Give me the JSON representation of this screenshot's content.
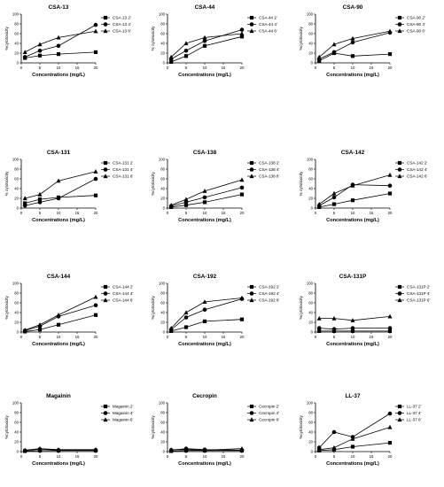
{
  "figure": {
    "panels_count": 12
  },
  "chart_data": [
    {
      "type": "line",
      "title": "CSA-13",
      "xlabel": "Concentrations (mg/L)",
      "ylabel": "%cytotoxicity",
      "x": [
        1,
        5,
        10,
        20
      ],
      "xticks": [
        0,
        5,
        10,
        15,
        20
      ],
      "ylim": [
        0,
        100
      ],
      "yticks": [
        0,
        20,
        40,
        60,
        80,
        100
      ],
      "series": [
        {
          "name": "CSA-13 2'",
          "marker": "square",
          "values": [
            10,
            15,
            18,
            22
          ]
        },
        {
          "name": "CSA-13 4'",
          "marker": "circle",
          "values": [
            12,
            25,
            35,
            78
          ]
        },
        {
          "name": "CSA-13 6'",
          "marker": "triangle",
          "values": [
            22,
            38,
            52,
            65
          ]
        }
      ]
    },
    {
      "type": "line",
      "title": "CSA-44",
      "xlabel": "Concentrations (mg/L)",
      "ylabel": "% cytotoxicity",
      "x": [
        1,
        5,
        10,
        20
      ],
      "xticks": [
        0,
        5,
        10,
        15,
        20
      ],
      "ylim": [
        0,
        100
      ],
      "yticks": [
        0,
        20,
        40,
        60,
        80,
        100
      ],
      "series": [
        {
          "name": "CSA-44 2'",
          "marker": "square",
          "values": [
            2,
            14,
            35,
            54
          ]
        },
        {
          "name": "CSA-44 4'",
          "marker": "circle",
          "values": [
            8,
            25,
            45,
            68
          ]
        },
        {
          "name": "CSA-44 6'",
          "marker": "triangle",
          "values": [
            12,
            40,
            52,
            60
          ]
        }
      ]
    },
    {
      "type": "line",
      "title": "CSA-90",
      "xlabel": "Concentrations (mg/L)",
      "ylabel": "%cytotoxicity",
      "x": [
        1,
        5,
        10,
        20
      ],
      "xticks": [
        0,
        5,
        10,
        15,
        20
      ],
      "ylim": [
        0,
        100
      ],
      "yticks": [
        0,
        20,
        40,
        60,
        80,
        100
      ],
      "series": [
        {
          "name": "CSA-90 2'",
          "marker": "square",
          "values": [
            4,
            20,
            14,
            18
          ]
        },
        {
          "name": "CSA-90 4'",
          "marker": "circle",
          "values": [
            8,
            22,
            42,
            62
          ]
        },
        {
          "name": "CSA-90 6'",
          "marker": "triangle",
          "values": [
            12,
            38,
            50,
            65
          ]
        }
      ]
    },
    {
      "type": "line",
      "title": "CSA-131",
      "xlabel": "Concentrations (mg/L)",
      "ylabel": "% cytotoxicity",
      "x": [
        1,
        5,
        10,
        20
      ],
      "xticks": [
        0,
        5,
        10,
        15,
        20
      ],
      "ylim": [
        0,
        100
      ],
      "yticks": [
        0,
        20,
        40,
        60,
        80,
        100
      ],
      "series": [
        {
          "name": "CSA-131 2'",
          "marker": "square",
          "values": [
            10,
            18,
            22,
            26
          ]
        },
        {
          "name": "CSA-131 4'",
          "marker": "circle",
          "values": [
            5,
            12,
            20,
            60
          ]
        },
        {
          "name": "CSA-131 6'",
          "marker": "triangle",
          "values": [
            20,
            28,
            56,
            75
          ]
        }
      ]
    },
    {
      "type": "line",
      "title": "CSA-138",
      "xlabel": "Concentrations (mg/L)",
      "ylabel": "%cytotoxicity",
      "x": [
        1,
        5,
        10,
        20
      ],
      "xticks": [
        0,
        5,
        10,
        15,
        20
      ],
      "ylim": [
        0,
        100
      ],
      "yticks": [
        0,
        20,
        40,
        60,
        80,
        100
      ],
      "series": [
        {
          "name": "CSA-138 2'",
          "marker": "square",
          "values": [
            2,
            6,
            12,
            28
          ]
        },
        {
          "name": "CSA-138 4'",
          "marker": "circle",
          "values": [
            4,
            12,
            22,
            42
          ]
        },
        {
          "name": "CSA-138 6'",
          "marker": "triangle",
          "values": [
            6,
            18,
            35,
            58
          ]
        }
      ]
    },
    {
      "type": "line",
      "title": "CSA-142",
      "xlabel": "Concentrations (mg/L)",
      "ylabel": "% cytotoxicity",
      "x": [
        1,
        5,
        10,
        20
      ],
      "xticks": [
        0,
        5,
        10,
        15,
        20
      ],
      "ylim": [
        0,
        100
      ],
      "yticks": [
        0,
        20,
        40,
        60,
        80,
        100
      ],
      "series": [
        {
          "name": "CSA-142 2'",
          "marker": "square",
          "values": [
            2,
            8,
            16,
            30
          ]
        },
        {
          "name": "CSA-142 4'",
          "marker": "circle",
          "values": [
            5,
            22,
            48,
            46
          ]
        },
        {
          "name": "CSA-142 6'",
          "marker": "triangle",
          "values": [
            8,
            30,
            46,
            68
          ]
        }
      ]
    },
    {
      "type": "line",
      "title": "CSA-144",
      "xlabel": "Concentrations (mg/L)",
      "ylabel": "%cytotoxicity",
      "x": [
        1,
        5,
        10,
        20
      ],
      "xticks": [
        0,
        5,
        10,
        15,
        20
      ],
      "ylim": [
        0,
        100
      ],
      "yticks": [
        0,
        20,
        40,
        60,
        80,
        100
      ],
      "series": [
        {
          "name": "CSA-144 2'",
          "marker": "square",
          "values": [
            1,
            5,
            15,
            35
          ]
        },
        {
          "name": "CSA-144 4'",
          "marker": "circle",
          "values": [
            3,
            12,
            32,
            55
          ]
        },
        {
          "name": "CSA-144 6'",
          "marker": "triangle",
          "values": [
            4,
            15,
            35,
            72
          ]
        }
      ]
    },
    {
      "type": "line",
      "title": "CSA-192",
      "xlabel": "Concentrations (mg/L)",
      "ylabel": "%cytotoxicity",
      "x": [
        1,
        5,
        10,
        20
      ],
      "xticks": [
        0,
        5,
        10,
        15,
        20
      ],
      "ylim": [
        0,
        100
      ],
      "yticks": [
        0,
        20,
        40,
        60,
        80,
        100
      ],
      "series": [
        {
          "name": "CSA-192 2'",
          "marker": "square",
          "values": [
            2,
            10,
            22,
            26
          ]
        },
        {
          "name": "CSA-192 4'",
          "marker": "circle",
          "values": [
            5,
            30,
            46,
            68
          ]
        },
        {
          "name": "CSA-192 6'",
          "marker": "triangle",
          "values": [
            8,
            40,
            62,
            70
          ]
        }
      ]
    },
    {
      "type": "line",
      "title": "CSA-131P",
      "xlabel": "Concentrations (mg/L)",
      "ylabel": "%cytotoxicity",
      "x": [
        1,
        5,
        10,
        20
      ],
      "xticks": [
        0,
        5,
        10,
        15,
        20
      ],
      "ylim": [
        0,
        100
      ],
      "yticks": [
        0,
        20,
        40,
        60,
        80,
        100
      ],
      "series": [
        {
          "name": "CSA-131P 2'",
          "marker": "square",
          "values": [
            2,
            2,
            2,
            2
          ]
        },
        {
          "name": "CSA-131P 4'",
          "marker": "circle",
          "values": [
            8,
            6,
            8,
            8
          ]
        },
        {
          "name": "CSA-131P 6'",
          "marker": "triangle",
          "values": [
            28,
            28,
            24,
            32
          ]
        }
      ]
    },
    {
      "type": "line",
      "title": "Magainin",
      "xlabel": "Concentrations (mg/L)",
      "ylabel": "%cytotoxicity",
      "x": [
        1,
        5,
        10,
        20
      ],
      "xticks": [
        0,
        5,
        10,
        15,
        20
      ],
      "ylim": [
        0,
        100
      ],
      "yticks": [
        0,
        20,
        40,
        60,
        80,
        100
      ],
      "series": [
        {
          "name": "Magainin 2'",
          "marker": "square",
          "values": [
            1,
            2,
            2,
            2
          ]
        },
        {
          "name": "Magainin 4'",
          "marker": "circle",
          "values": [
            2,
            5,
            3,
            3
          ]
        },
        {
          "name": "Magainin 6'",
          "marker": "triangle",
          "values": [
            3,
            6,
            4,
            4
          ]
        }
      ]
    },
    {
      "type": "line",
      "title": "Cecropin",
      "xlabel": "Concentrations (mg/L)",
      "ylabel": "%cytotoxicity",
      "x": [
        1,
        5,
        10,
        20
      ],
      "xticks": [
        0,
        5,
        10,
        15,
        20
      ],
      "ylim": [
        0,
        100
      ],
      "yticks": [
        0,
        20,
        40,
        60,
        80,
        100
      ],
      "series": [
        {
          "name": "Cecropin 2'",
          "marker": "square",
          "values": [
            1,
            2,
            2,
            2
          ]
        },
        {
          "name": "Cecropin 4'",
          "marker": "circle",
          "values": [
            3,
            6,
            4,
            3
          ]
        },
        {
          "name": "Cecropin 6'",
          "marker": "triangle",
          "values": [
            4,
            4,
            3,
            6
          ]
        }
      ]
    },
    {
      "type": "line",
      "title": "LL-37",
      "xlabel": "Concentrations (mg/L)",
      "ylabel": "%cytotoxicity",
      "x": [
        1,
        5,
        10,
        20
      ],
      "xticks": [
        0,
        5,
        10,
        15,
        20
      ],
      "ylim": [
        0,
        100
      ],
      "yticks": [
        0,
        20,
        40,
        60,
        80,
        100
      ],
      "series": [
        {
          "name": "LL-37 2'",
          "marker": "square",
          "values": [
            2,
            4,
            10,
            18
          ]
        },
        {
          "name": "LL-37 4'",
          "marker": "circle",
          "values": [
            8,
            40,
            30,
            78
          ]
        },
        {
          "name": "LL-37 6'",
          "marker": "triangle",
          "values": [
            4,
            8,
            26,
            50
          ]
        }
      ]
    }
  ]
}
